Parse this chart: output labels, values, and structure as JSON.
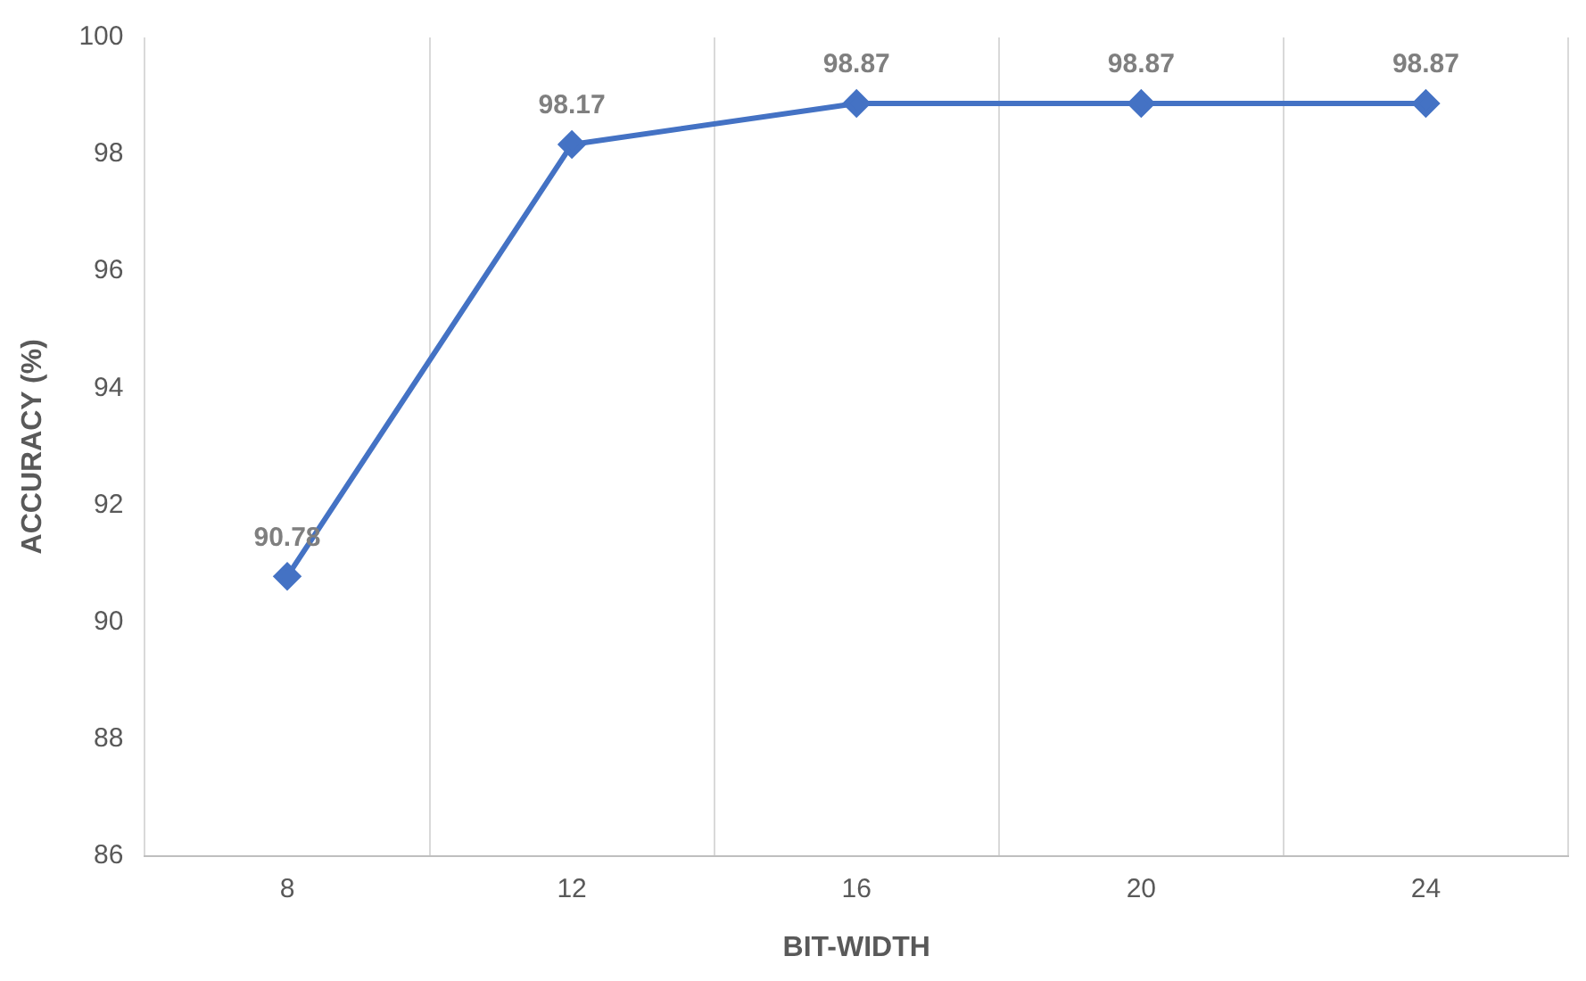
{
  "chart_data": {
    "type": "line",
    "xlabel": "BIT-WIDTH",
    "ylabel": "ACCURACY (%)",
    "categories": [
      "8",
      "12",
      "16",
      "20",
      "24"
    ],
    "series": [
      {
        "color": "#4472c4",
        "values": [
          90.78,
          98.17,
          98.87,
          98.87,
          98.87
        ]
      }
    ],
    "ylim": [
      86,
      100
    ],
    "yticks": [
      86,
      88,
      90,
      92,
      94,
      96,
      98,
      100
    ],
    "grid": "x",
    "legend": false,
    "marker": "diamond",
    "line_style": "solid",
    "data_labels": true
  }
}
